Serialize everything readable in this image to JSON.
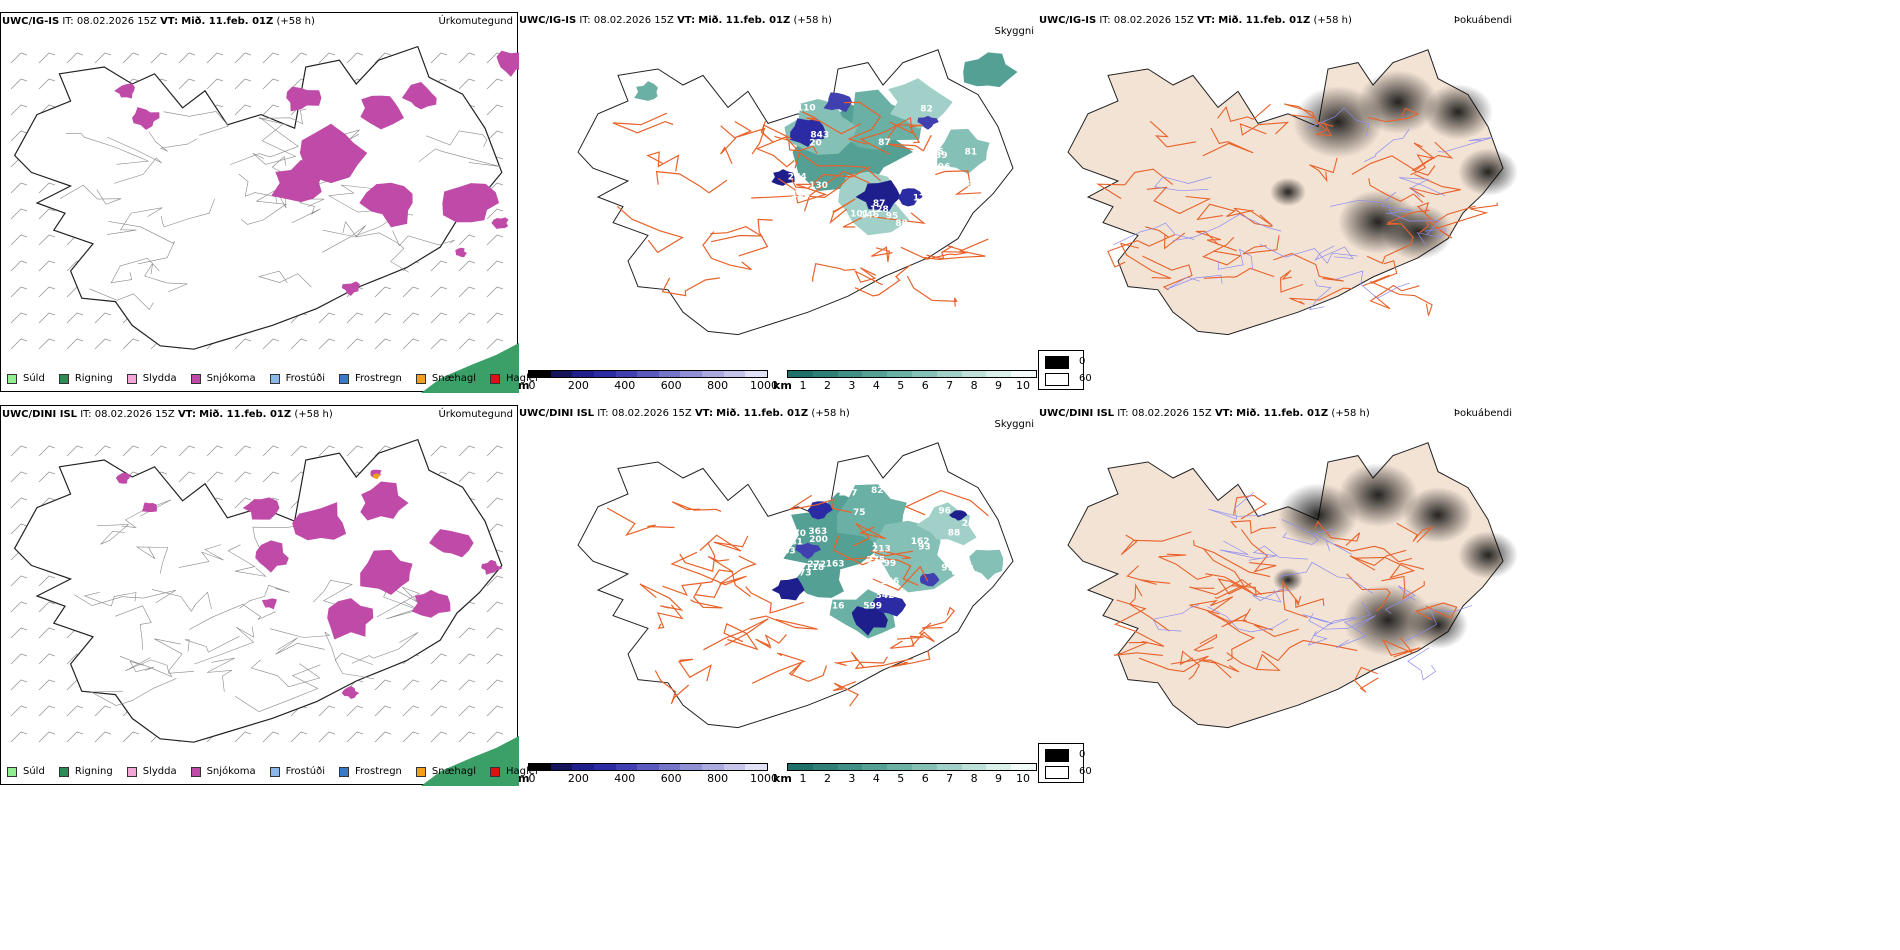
{
  "colors": {
    "drizzle": "#90ee90",
    "rain": "#2e8b57",
    "sleet": "#f4a6d7",
    "snow": "#c04aa8",
    "freezing_drizzle": "#8ab8e8",
    "freezing_rain": "#3a78c8",
    "graupel": "#f0a020",
    "hail": "#e01010",
    "visibility_m": [
      "#000000",
      "#14145a",
      "#1e1e8c",
      "#2b2ba3",
      "#4040b0",
      "#5a5abd",
      "#7474c8",
      "#8f8fd3",
      "#aaaadf",
      "#c5c5eb",
      "#e2e2f6"
    ],
    "visibility_km": [
      "#1f6f6a",
      "#2f7f78",
      "#408f86",
      "#54a095",
      "#6bb0a5",
      "#85c0b6",
      "#a0d0c7",
      "#bde0d9",
      "#d8efea",
      "#f2fbf9"
    ],
    "sea_green": "#3aa068",
    "land_fog_base": "#f3e3d5",
    "roads": "#e8622a",
    "rivers": "#8c8cf0"
  },
  "rows": [
    {
      "model": "UWC/IG-IS",
      "it": "IT: 08.02.2026 15Z",
      "vt_label": "VT:",
      "vt_value": "Mið. 11.feb. 01Z",
      "lead": "(+58 h)",
      "visibility_labels": [
        "101",
        "87",
        "87",
        "79",
        "81",
        "122",
        "128",
        "274",
        "145",
        "843",
        "130",
        "80",
        "146",
        "88",
        "82",
        "95",
        "170",
        "158",
        "149",
        "339",
        "110",
        "296",
        "20"
      ]
    },
    {
      "model": "UWC/DINI ISL",
      "it": "IT: 08.02.2026 15Z",
      "vt_label": "VT:",
      "vt_value": "Mið. 11.feb. 01Z",
      "lead": "(+58 h)",
      "visibility_labels": [
        "103",
        "99",
        "96",
        "88",
        "75",
        "101",
        "249",
        "272",
        "299",
        "599",
        "82",
        "162",
        "93",
        "247",
        "342",
        "70",
        "173",
        "287",
        "93",
        "181",
        "275",
        "213",
        "255",
        "163",
        "363",
        "57",
        "63",
        "16",
        "156",
        "118",
        "200"
      ]
    }
  ],
  "panel_titles": {
    "precip": "Úrkomutegund",
    "visibility": "Skyggni",
    "fog": "Þokuábendi"
  },
  "precip_legend": [
    {
      "label": "Súld",
      "color_key": "drizzle"
    },
    {
      "label": "Rigning",
      "color_key": "rain"
    },
    {
      "label": "Slydda",
      "color_key": "sleet"
    },
    {
      "label": "Snjókoma",
      "color_key": "snow"
    },
    {
      "label": "Frostúði",
      "color_key": "freezing_drizzle"
    },
    {
      "label": "Frostregn",
      "color_key": "freezing_rain"
    },
    {
      "label": "Snæhagl",
      "color_key": "graupel"
    },
    {
      "label": "Haglél",
      "color_key": "hail"
    }
  ],
  "vis_m_scale": {
    "unit": "m",
    "ticks": [
      "0",
      "200",
      "400",
      "600",
      "800",
      "1000"
    ]
  },
  "vis_km_scale": {
    "unit": "km",
    "ticks": [
      "1",
      "2",
      "3",
      "4",
      "5",
      "6",
      "7",
      "8",
      "9",
      "10"
    ]
  },
  "fog_legend": [
    {
      "label": "0",
      "color": "#000000"
    },
    {
      "label": "60",
      "color": "#ffffff"
    }
  ]
}
